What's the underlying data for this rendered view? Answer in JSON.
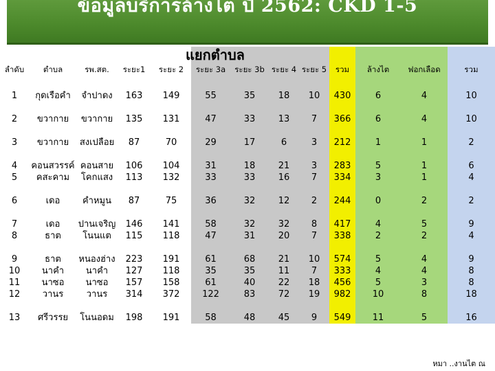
{
  "header": {
    "title": "ข้อมูลบริการล้างไต ปี 2562: CKD 1-5",
    "subtitle": "แยกตำบล"
  },
  "table": {
    "columns": [
      "ลำดับ",
      "ตำบล",
      "รพ.สต.",
      "ระยะ1",
      "ระยะ 2",
      "ระยะ 3a",
      "ระยะ 3b",
      "ระยะ 4",
      "ระยะ 5",
      "รวม",
      "ล้างไต",
      "ฟอกเลือด",
      "รวม"
    ],
    "rows": [
      {
        "no": "1",
        "tambon": "กุดเรือคำ",
        "rpsot": "จำปาดง",
        "s1": "163",
        "s2": "149",
        "s3a": "55",
        "s3b": "35",
        "s4": "18",
        "s5": "10",
        "total": "430",
        "pd": "6",
        "hd": "4",
        "sum": "10"
      },
      {
        "no": "2",
        "tambon": "ขวากาย",
        "rpsot": "ขวากาย",
        "s1": "135",
        "s2": "131",
        "s3a": "47",
        "s3b": "33",
        "s4": "13",
        "s5": "7",
        "total": "366",
        "pd": "6",
        "hd": "4",
        "sum": "10"
      },
      {
        "no": "3",
        "tambon": "ขวากาย",
        "rpsot": "สงเปลือย",
        "s1": "87",
        "s2": "70",
        "s3a": "29",
        "s3b": "17",
        "s4": "6",
        "s5": "3",
        "total": "212",
        "pd": "1",
        "hd": "1",
        "sum": "2"
      },
      {
        "no": "4",
        "tambon": "คอนสวรรค์",
        "rpsot": "คอนสาย",
        "s1": "106",
        "s2": "104",
        "s3a": "31",
        "s3b": "18",
        "s4": "21",
        "s5": "3",
        "total": "283",
        "pd": "5",
        "hd": "1",
        "sum": "6"
      },
      {
        "no": "5",
        "tambon": "คสะคาม",
        "rpsot": "โคกแสง",
        "s1": "113",
        "s2": "132",
        "s3a": "33",
        "s3b": "33",
        "s4": "16",
        "s5": "7",
        "total": "334",
        "pd": "3",
        "hd": "1",
        "sum": "4"
      },
      {
        "no": "6",
        "tambon": "เดอ",
        "rpsot": "คำหมูน",
        "s1": "87",
        "s2": "75",
        "s3a": "36",
        "s3b": "32",
        "s4": "12",
        "s5": "2",
        "total": "244",
        "pd": "0",
        "hd": "2",
        "sum": "2"
      },
      {
        "no": "7",
        "tambon": "เดอ",
        "rpsot": "ปานเจริญ",
        "s1": "146",
        "s2": "141",
        "s3a": "58",
        "s3b": "32",
        "s4": "32",
        "s5": "8",
        "total": "417",
        "pd": "4",
        "hd": "5",
        "sum": "9"
      },
      {
        "no": "8",
        "tambon": "ธาต",
        "rpsot": "โนนแต",
        "s1": "115",
        "s2": "118",
        "s3a": "47",
        "s3b": "31",
        "s4": "20",
        "s5": "7",
        "total": "338",
        "pd": "2",
        "hd": "2",
        "sum": "4"
      },
      {
        "no": "9",
        "tambon": "ธาต",
        "rpsot": "หนองฮ่าง",
        "s1": "223",
        "s2": "191",
        "s3a": "61",
        "s3b": "68",
        "s4": "21",
        "s5": "10",
        "total": "574",
        "pd": "5",
        "hd": "4",
        "sum": "9"
      },
      {
        "no": "10",
        "tambon": "นาคำ",
        "rpsot": "นาคำ",
        "s1": "127",
        "s2": "118",
        "s3a": "35",
        "s3b": "35",
        "s4": "11",
        "s5": "7",
        "total": "333",
        "pd": "4",
        "hd": "4",
        "sum": "8"
      },
      {
        "no": "11",
        "tambon": "นาซอ",
        "rpsot": "นาซอ",
        "s1": "157",
        "s2": "158",
        "s3a": "61",
        "s3b": "40",
        "s4": "22",
        "s5": "18",
        "total": "456",
        "pd": "5",
        "hd": "3",
        "sum": "8"
      },
      {
        "no": "12",
        "tambon": "วานร",
        "rpsot": "วานร",
        "s1": "314",
        "s2": "372",
        "s3a": "122",
        "s3b": "83",
        "s4": "72",
        "s5": "19",
        "total": "982",
        "pd": "10",
        "hd": "8",
        "sum": "18"
      },
      {
        "no": "13",
        "tambon": "ศรีวรรย",
        "rpsot": "โนนอดม",
        "s1": "198",
        "s2": "191",
        "s3a": "58",
        "s3b": "48",
        "s4": "45",
        "s5": "9",
        "total": "549",
        "pd": "11",
        "hd": "5",
        "sum": "16"
      }
    ]
  },
  "footer": {
    "note": "หมา ..งานไต ณ"
  }
}
